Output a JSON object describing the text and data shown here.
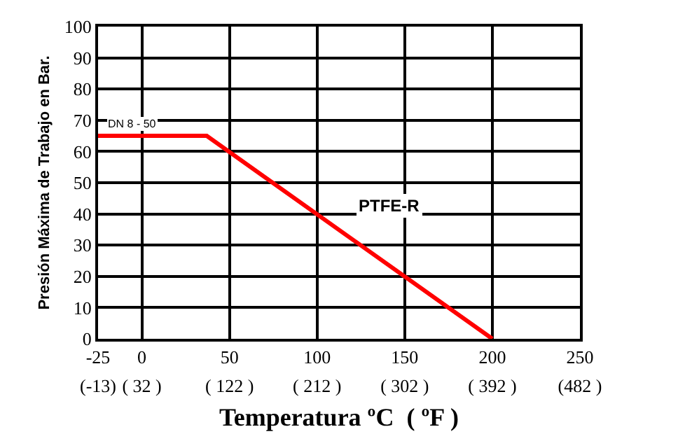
{
  "chart_data": {
    "type": "line",
    "xlabel": "Temperatura ºC  ( ºF )",
    "ylabel": "Presión Máxima de Trabajo en Bar.",
    "series": [
      {
        "name": "PTFE-R",
        "color": "#ff0000",
        "x": [
          -25,
          37,
          200
        ],
        "values": [
          65,
          65,
          0
        ]
      }
    ],
    "annotations": [
      {
        "text": "DN 8 - 50",
        "x": -20,
        "y": 65
      }
    ],
    "xlim": [
      -25,
      250
    ],
    "xticks": [
      -25,
      0,
      50,
      100,
      150,
      200,
      250
    ],
    "x2lim": [
      -13,
      482
    ],
    "x2ticks": [
      {
        "value": -13,
        "label": "(-13)"
      },
      {
        "value": 32,
        "label": "( 32 )"
      },
      {
        "value": 122,
        "label": "( 122 )"
      },
      {
        "value": 212,
        "label": "( 212 )"
      },
      {
        "value": 302,
        "label": "( 302 )"
      },
      {
        "value": 392,
        "label": "( 392 )"
      },
      {
        "value": 482,
        "label": "(482 )"
      }
    ],
    "ylim": [
      0,
      100
    ],
    "yticks": [
      0,
      10,
      20,
      30,
      40,
      50,
      60,
      70,
      80,
      90,
      100
    ],
    "grid": true,
    "legend": false,
    "marker": "none",
    "line_style": "solid"
  }
}
